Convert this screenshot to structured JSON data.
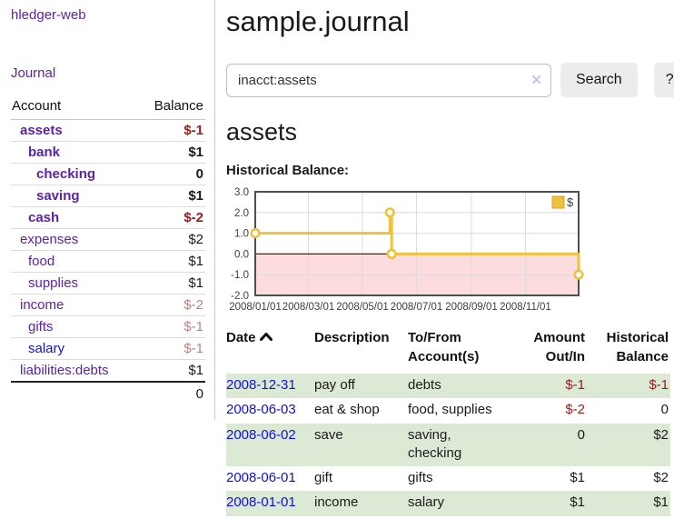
{
  "sidebar": {
    "brand": "hledger-web",
    "nav": {
      "journal": "Journal"
    },
    "table": {
      "headers": {
        "account": "Account",
        "balance": "Balance"
      },
      "rows": [
        {
          "account": "assets",
          "balance": "$-1",
          "depth": 1,
          "bold": true,
          "link_color": "purple",
          "balance_class": "neg"
        },
        {
          "account": "bank",
          "balance": "$1",
          "depth": 2,
          "bold": true,
          "link_color": "purple",
          "balance_class": ""
        },
        {
          "account": "checking",
          "balance": "0",
          "depth": 3,
          "bold": true,
          "link_color": "purple",
          "balance_class": ""
        },
        {
          "account": "saving",
          "balance": "$1",
          "depth": 3,
          "bold": true,
          "link_color": "purple",
          "balance_class": ""
        },
        {
          "account": "cash",
          "balance": "$-2",
          "depth": 2,
          "bold": true,
          "link_color": "purple",
          "balance_class": "neg"
        },
        {
          "account": "expenses",
          "balance": "$2",
          "depth": 1,
          "bold": false,
          "link_color": "purple",
          "balance_class": ""
        },
        {
          "account": "food",
          "balance": "$1",
          "depth": 2,
          "bold": false,
          "link_color": "purple",
          "balance_class": ""
        },
        {
          "account": "supplies",
          "balance": "$1",
          "depth": 2,
          "bold": false,
          "link_color": "purple",
          "balance_class": ""
        },
        {
          "account": "income",
          "balance": "$-2",
          "depth": 1,
          "bold": false,
          "link_color": "purple",
          "balance_class": "neg-muted"
        },
        {
          "account": "gifts",
          "balance": "$-1",
          "depth": 2,
          "bold": false,
          "link_color": "purple",
          "balance_class": "neg-muted"
        },
        {
          "account": "salary",
          "balance": "$-1",
          "depth": 2,
          "bold": false,
          "link_color": "blue",
          "balance_class": "neg-muted"
        },
        {
          "account": "liabilities:debts",
          "balance": "$1",
          "depth": 1,
          "bold": false,
          "link_color": "purple",
          "balance_class": ""
        }
      ],
      "total": "0"
    }
  },
  "main": {
    "title": "sample.journal",
    "search": {
      "value": "inacct:assets",
      "button_label": "Search",
      "help_label": "?"
    },
    "account_heading": "assets",
    "chart_heading": "Historical Balance:"
  },
  "icons": {
    "clear_search": "✕",
    "date_sort": "chevron-up"
  },
  "chart_data": {
    "type": "line",
    "step": true,
    "title": "Historical Balance:",
    "series": [
      {
        "name": "$",
        "color": "#edc240",
        "points": [
          [
            "2008-01-01",
            1
          ],
          [
            "2008-06-01",
            2
          ],
          [
            "2008-06-03",
            0
          ],
          [
            "2008-12-31",
            -1
          ]
        ]
      }
    ],
    "xlim": [
      "2008-01-01",
      "2008-12-31"
    ],
    "ylim": [
      -2,
      3
    ],
    "y_ticks": [
      3.0,
      2.0,
      1.0,
      0.0,
      -1.0,
      -2.0
    ],
    "x_ticks": [
      "2008-01-01",
      "2008-03-01",
      "2008-05-01",
      "2008-07-01",
      "2008-09-01",
      "2008-11-01"
    ],
    "legend": {
      "label": "$",
      "position": "top-right"
    },
    "grid": true,
    "negative_region_color": "#fcdcdc",
    "zero_line_color": "#8b0000",
    "border_color": "#4e4e4e",
    "grid_color": "#dcdcdc"
  },
  "transactions": {
    "headers": {
      "date": "Date",
      "description": "Description",
      "accounts": "To/From Account(s)",
      "amount": "Amount Out/In",
      "balance": "Historical Balance"
    },
    "rows": [
      {
        "date": "2008-12-31",
        "description": "pay off",
        "accounts": "debts",
        "amount": "$-1",
        "amount_negative": true,
        "balance": "$-1",
        "balance_negative": true
      },
      {
        "date": "2008-06-03",
        "description": "eat & shop",
        "accounts": "food, supplies",
        "amount": "$-2",
        "amount_negative": true,
        "balance": "0",
        "balance_negative": false
      },
      {
        "date": "2008-06-02",
        "description": "save",
        "accounts": "saving, checking",
        "amount": "0",
        "amount_negative": false,
        "balance": "$2",
        "balance_negative": false
      },
      {
        "date": "2008-06-01",
        "description": "gift",
        "accounts": "gifts",
        "amount": "$1",
        "amount_negative": false,
        "balance": "$2",
        "balance_negative": false
      },
      {
        "date": "2008-01-01",
        "description": "income",
        "accounts": "salary",
        "amount": "$1",
        "amount_negative": false,
        "balance": "$1",
        "balance_negative": false
      }
    ]
  }
}
